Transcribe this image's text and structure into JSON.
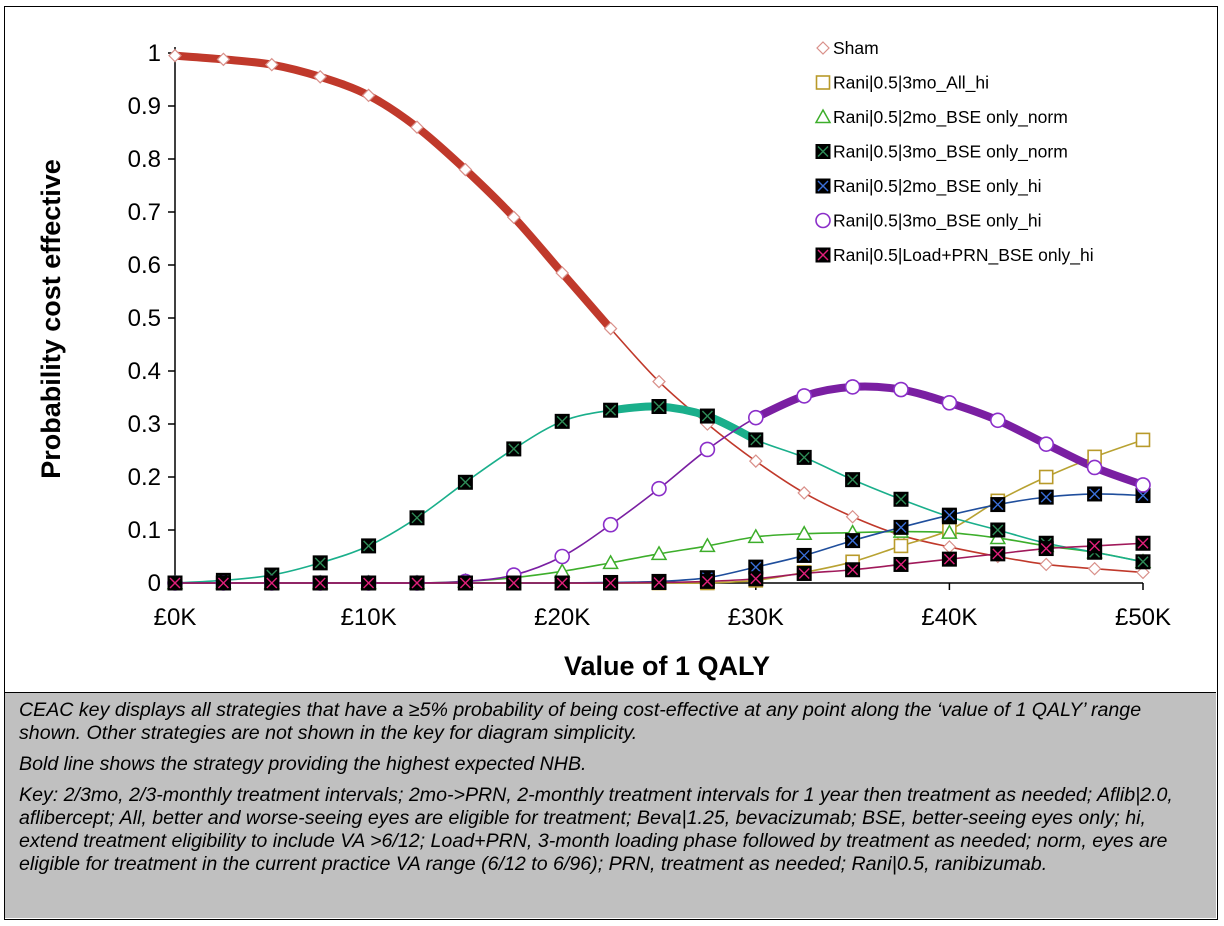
{
  "chart_data": {
    "type": "line",
    "xlabel": "Value of 1 QALY",
    "ylabel": "Probability cost effective",
    "x": [
      0,
      2500,
      5000,
      7500,
      10000,
      12500,
      15000,
      17500,
      20000,
      22500,
      25000,
      27500,
      30000,
      32500,
      35000,
      37500,
      40000,
      42500,
      45000,
      47500,
      50000
    ],
    "xlim": [
      0,
      50000
    ],
    "ylim": [
      0,
      1
    ],
    "xticks": [
      0,
      10000,
      20000,
      30000,
      40000,
      50000
    ],
    "xtick_labels": [
      "£0K",
      "£10K",
      "£20K",
      "£30K",
      "£40K",
      "£50K"
    ],
    "yticks": [
      0,
      0.1,
      0.2,
      0.3,
      0.4,
      0.5,
      0.6,
      0.7,
      0.8,
      0.9,
      1
    ],
    "ytick_labels": [
      "0",
      "0.1",
      "0.2",
      "0.3",
      "0.4",
      "0.5",
      "0.6",
      "0.7",
      "0.8",
      "0.9",
      "1"
    ],
    "grid": false,
    "legend_position": "top-right",
    "series": [
      {
        "name": "Sham",
        "color": "#c0392b",
        "marker": "diamond",
        "marker_stroke": "#d9908a",
        "marker_fill": "#ffffff",
        "values": [
          0.995,
          0.988,
          0.978,
          0.955,
          0.92,
          0.86,
          0.78,
          0.69,
          0.585,
          0.48,
          0.38,
          0.3,
          0.23,
          0.17,
          0.125,
          0.09,
          0.068,
          0.05,
          0.035,
          0.027,
          0.02
        ],
        "bold_range": [
          0,
          22500
        ]
      },
      {
        "name": "Rani|0.5|3mo_All_hi",
        "color": "#b8a232",
        "marker": "square-open",
        "marker_stroke": "#b89a2a",
        "marker_fill": "#ffffff",
        "values": [
          0,
          0,
          0,
          0,
          0,
          0,
          0,
          0,
          0,
          0,
          0,
          0,
          0.005,
          0.02,
          0.04,
          0.07,
          0.1,
          0.155,
          0.2,
          0.238,
          0.27
        ],
        "bold_range": null
      },
      {
        "name": "Rani|0.5|2mo_BSE only_norm",
        "color": "#3dae2b",
        "marker": "triangle",
        "marker_stroke": "#3dae2b",
        "marker_fill": "#ffffff",
        "values": [
          0,
          0,
          0,
          0,
          0,
          0,
          0.003,
          0.01,
          0.022,
          0.038,
          0.055,
          0.07,
          0.087,
          0.093,
          0.095,
          0.097,
          0.095,
          0.085,
          0.07,
          0.058,
          0.04
        ],
        "bold_range": null
      },
      {
        "name": "Rani|0.5|3mo_BSE only_norm",
        "color": "#1aaf8b",
        "marker": "square-x",
        "marker_stroke": "#2e8b57",
        "marker_fill": "#000000",
        "values": [
          0,
          0.005,
          0.015,
          0.038,
          0.07,
          0.123,
          0.19,
          0.253,
          0.305,
          0.326,
          0.333,
          0.315,
          0.27,
          0.237,
          0.195,
          0.158,
          0.125,
          0.1,
          0.075,
          0.058,
          0.04
        ],
        "bold_range": [
          22500,
          30000
        ]
      },
      {
        "name": "Rani|0.5|2mo_BSE only_hi",
        "color": "#1f4e9c",
        "marker": "square-x",
        "marker_stroke": "#3a6fd8",
        "marker_fill": "#000000",
        "values": [
          0,
          0,
          0,
          0,
          0,
          0,
          0,
          0,
          0,
          0.001,
          0.003,
          0.01,
          0.03,
          0.052,
          0.08,
          0.105,
          0.128,
          0.148,
          0.162,
          0.168,
          0.165
        ],
        "bold_range": null
      },
      {
        "name": "Rani|0.5|3mo_BSE only_hi",
        "color": "#7a1fa2",
        "marker": "circle",
        "marker_stroke": "#8b2fc9",
        "marker_fill": "#ffffff",
        "values": [
          0,
          0,
          0,
          0,
          0,
          0,
          0.003,
          0.015,
          0.05,
          0.11,
          0.178,
          0.252,
          0.312,
          0.353,
          0.37,
          0.365,
          0.34,
          0.307,
          0.262,
          0.218,
          0.185
        ],
        "bold_range": [
          30000,
          50000
        ]
      },
      {
        "name": "Rani|0.5|Load+PRN_BSE only_hi",
        "color": "#a0195a",
        "marker": "square-x",
        "marker_stroke": "#e0207a",
        "marker_fill": "#000000",
        "values": [
          0,
          0,
          0,
          0,
          0,
          0,
          0,
          0,
          0,
          0,
          0.001,
          0.003,
          0.008,
          0.018,
          0.025,
          0.035,
          0.045,
          0.055,
          0.065,
          0.07,
          0.075
        ],
        "bold_range": null
      }
    ]
  },
  "caption": {
    "line1": "CEAC key displays all strategies that have a ≥5% probability of being cost-effective at any point along the ‘value of 1 QALY’ range shown. Other strategies are not shown in the key for diagram simplicity.",
    "line2": "Bold line shows the strategy providing the highest expected NHB.",
    "line3": "Key: 2/3mo, 2/3-monthly treatment intervals; 2mo->PRN, 2-monthly treatment intervals for 1 year then treatment as needed; Aflib|2.0, aflibercept; All, better and worse-seeing eyes are eligible for treatment; Beva|1.25, bevacizumab; BSE, better-seeing eyes only; hi, extend treatment eligibility to include VA >6/12; Load+PRN, 3-month loading phase followed by treatment as needed; norm, eyes are eligible for treatment in the current practice VA range (6/12 to 6/96); PRN, treatment as needed; Rani|0.5, ranibizumab."
  }
}
